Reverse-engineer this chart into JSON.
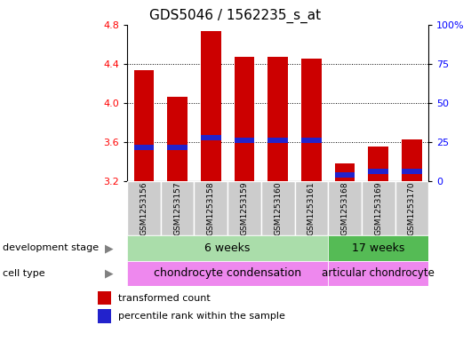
{
  "title": "GDS5046 / 1562235_s_at",
  "samples": [
    "GSM1253156",
    "GSM1253157",
    "GSM1253158",
    "GSM1253159",
    "GSM1253160",
    "GSM1253161",
    "GSM1253168",
    "GSM1253169",
    "GSM1253170"
  ],
  "bar_bottom": 3.2,
  "bar_tops": [
    4.33,
    4.06,
    4.73,
    4.47,
    4.47,
    4.45,
    3.38,
    3.56,
    3.63
  ],
  "percentile_values": [
    3.55,
    3.55,
    3.65,
    3.62,
    3.62,
    3.62,
    3.27,
    3.3,
    3.3
  ],
  "ylim_min": 3.2,
  "ylim_max": 4.8,
  "yticks_left": [
    3.2,
    3.6,
    4.0,
    4.4,
    4.8
  ],
  "yticks_right": [
    0,
    25,
    50,
    75,
    100
  ],
  "ytick_labels_right": [
    "0",
    "25",
    "50",
    "75",
    "100%"
  ],
  "bar_color": "#cc0000",
  "blue_color": "#2222cc",
  "group1_samples": 6,
  "group2_samples": 3,
  "dev_stage_label": "development stage",
  "dev_stage_groups": [
    "6 weeks",
    "17 weeks"
  ],
  "cell_type_label": "cell type",
  "cell_type_groups": [
    "chondrocyte condensation",
    "articular chondrocyte"
  ],
  "dev_stage_color1": "#aaddaa",
  "dev_stage_color2": "#55bb55",
  "cell_type_color": "#ee88ee",
  "legend_red": "transformed count",
  "legend_blue": "percentile rank within the sample",
  "background_gray": "#cccccc",
  "title_fontsize": 11
}
